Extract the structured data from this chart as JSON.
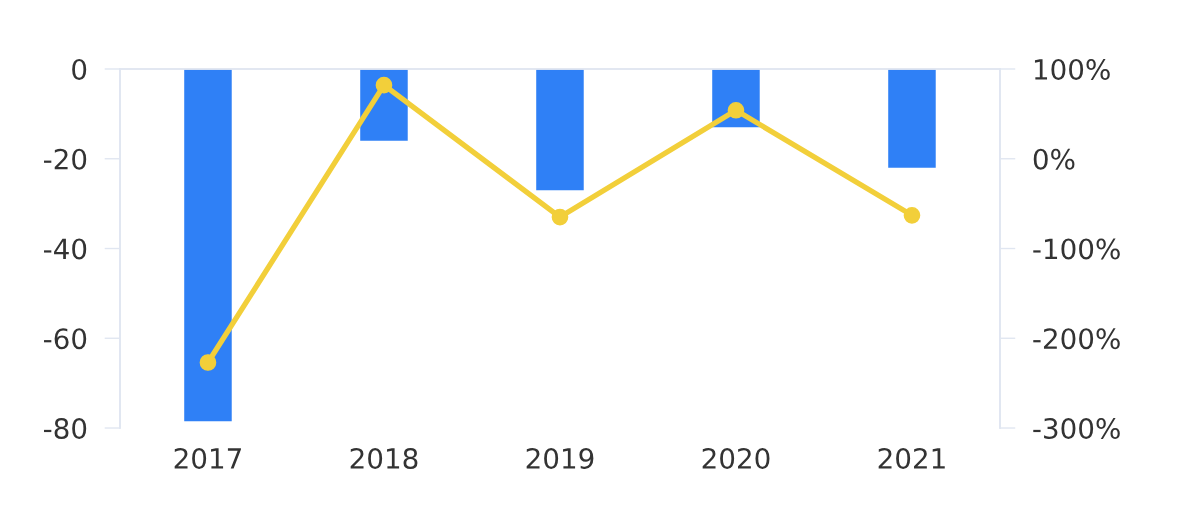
{
  "chart_data": {
    "type": "bar",
    "categories": [
      "2017",
      "2018",
      "2019",
      "2020",
      "2021"
    ],
    "series": [
      {
        "color": "#2f80f6",
        "values": [
          -78.5,
          -16,
          -27,
          -13,
          -22
        ]
      },
      {
        "type": "line",
        "axis": "y2",
        "color": "#f2cf3a",
        "values": [
          -227,
          82,
          -65,
          54,
          -63
        ]
      }
    ],
    "marker": "circle",
    "line_style": "solid",
    "grid": false,
    "ylim": [
      -80,
      0
    ],
    "yticks": [
      -80,
      -60,
      -40,
      -20,
      0
    ],
    "y2lim": [
      -300,
      100
    ],
    "y2ticks": [
      {
        "value": -300,
        "label": "-300%"
      },
      {
        "value": -200,
        "label": "-200%"
      },
      {
        "value": -100,
        "label": "-100%"
      },
      {
        "value": 0,
        "label": "0%"
      },
      {
        "value": 100,
        "label": "100%"
      }
    ]
  }
}
